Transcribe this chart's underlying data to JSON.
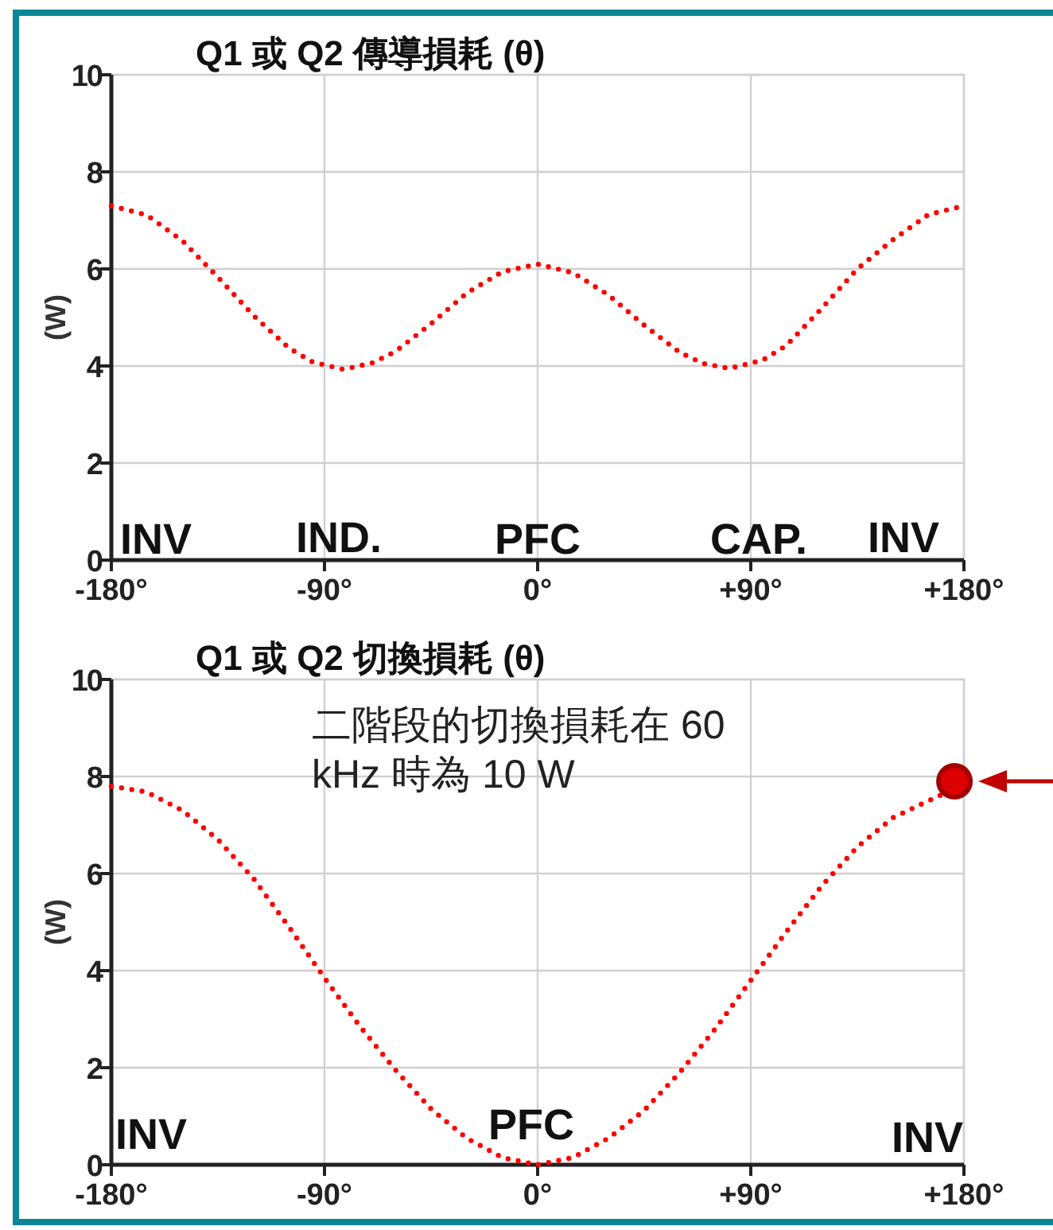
{
  "chart_data": [
    {
      "type": "line",
      "title": "Q1 或 Q2 傳導損耗 (θ)",
      "ylabel": "(W)",
      "xlim": [
        -180,
        180
      ],
      "ylim": [
        0,
        10
      ],
      "xticks": [
        {
          "value": -180,
          "label": "-180°"
        },
        {
          "value": -90,
          "label": "-90°"
        },
        {
          "value": 0,
          "label": "0°"
        },
        {
          "value": 90,
          "label": "+90°"
        },
        {
          "value": 180,
          "label": "+180°"
        }
      ],
      "yticks": [
        0,
        2,
        4,
        6,
        8,
        10
      ],
      "grid": true,
      "line_style": "dotted",
      "series": [
        {
          "color": "#ff0000",
          "x": [
            -180,
            -165,
            -150,
            -135,
            -120,
            -105,
            -95,
            -82,
            -70,
            -60,
            -45,
            -30,
            -15,
            0,
            15,
            30,
            45,
            60,
            70,
            81,
            95,
            105,
            120,
            135,
            150,
            165,
            180
          ],
          "values": [
            7.3,
            7.11,
            6.58,
            5.83,
            5.04,
            4.37,
            4.08,
            3.93,
            4.06,
            4.3,
            4.87,
            5.5,
            5.94,
            6.1,
            5.92,
            5.46,
            4.84,
            4.28,
            4.05,
            3.95,
            4.12,
            4.42,
            5.19,
            6.0,
            6.6,
            7.12,
            7.3
          ]
        }
      ],
      "annotations": [
        "INV",
        "IND.",
        "PFC",
        "CAP.",
        "INV"
      ]
    },
    {
      "type": "line",
      "title": "Q1 或 Q2 切換損耗 (θ)",
      "ylabel": "(W)",
      "xlim": [
        -180,
        180
      ],
      "ylim": [
        0,
        10
      ],
      "xticks": [
        {
          "value": -180,
          "label": "-180°"
        },
        {
          "value": -90,
          "label": "-90°"
        },
        {
          "value": 0,
          "label": "0°"
        },
        {
          "value": 90,
          "label": "+90°"
        },
        {
          "value": 180,
          "label": "+180°"
        }
      ],
      "yticks": [
        0,
        2,
        4,
        6,
        8,
        10
      ],
      "grid": true,
      "line_style": "dotted",
      "series": [
        {
          "color": "#ff0000",
          "x": [
            -180,
            -165,
            -150,
            -135,
            -120,
            -105,
            -90,
            -75,
            -60,
            -45,
            -30,
            -15,
            0,
            15,
            30,
            45,
            60,
            75,
            90,
            105,
            120,
            135,
            150,
            165,
            174
          ],
          "values": [
            7.8,
            7.68,
            7.3,
            6.7,
            5.9,
            4.9,
            3.85,
            2.85,
            1.95,
            1.15,
            0.55,
            0.15,
            0,
            0.15,
            0.55,
            1.12,
            1.9,
            2.8,
            3.8,
            4.8,
            5.75,
            6.55,
            7.15,
            7.5,
            7.7
          ]
        },
        {
          "type": "scatter",
          "color": "#dd0000",
          "x": [
            176
          ],
          "values": [
            7.9
          ]
        }
      ],
      "annotations": [
        "二階段的切換損耗在 60 kHz 時為 10 W",
        "INV",
        "PFC",
        "INV"
      ]
    }
  ]
}
